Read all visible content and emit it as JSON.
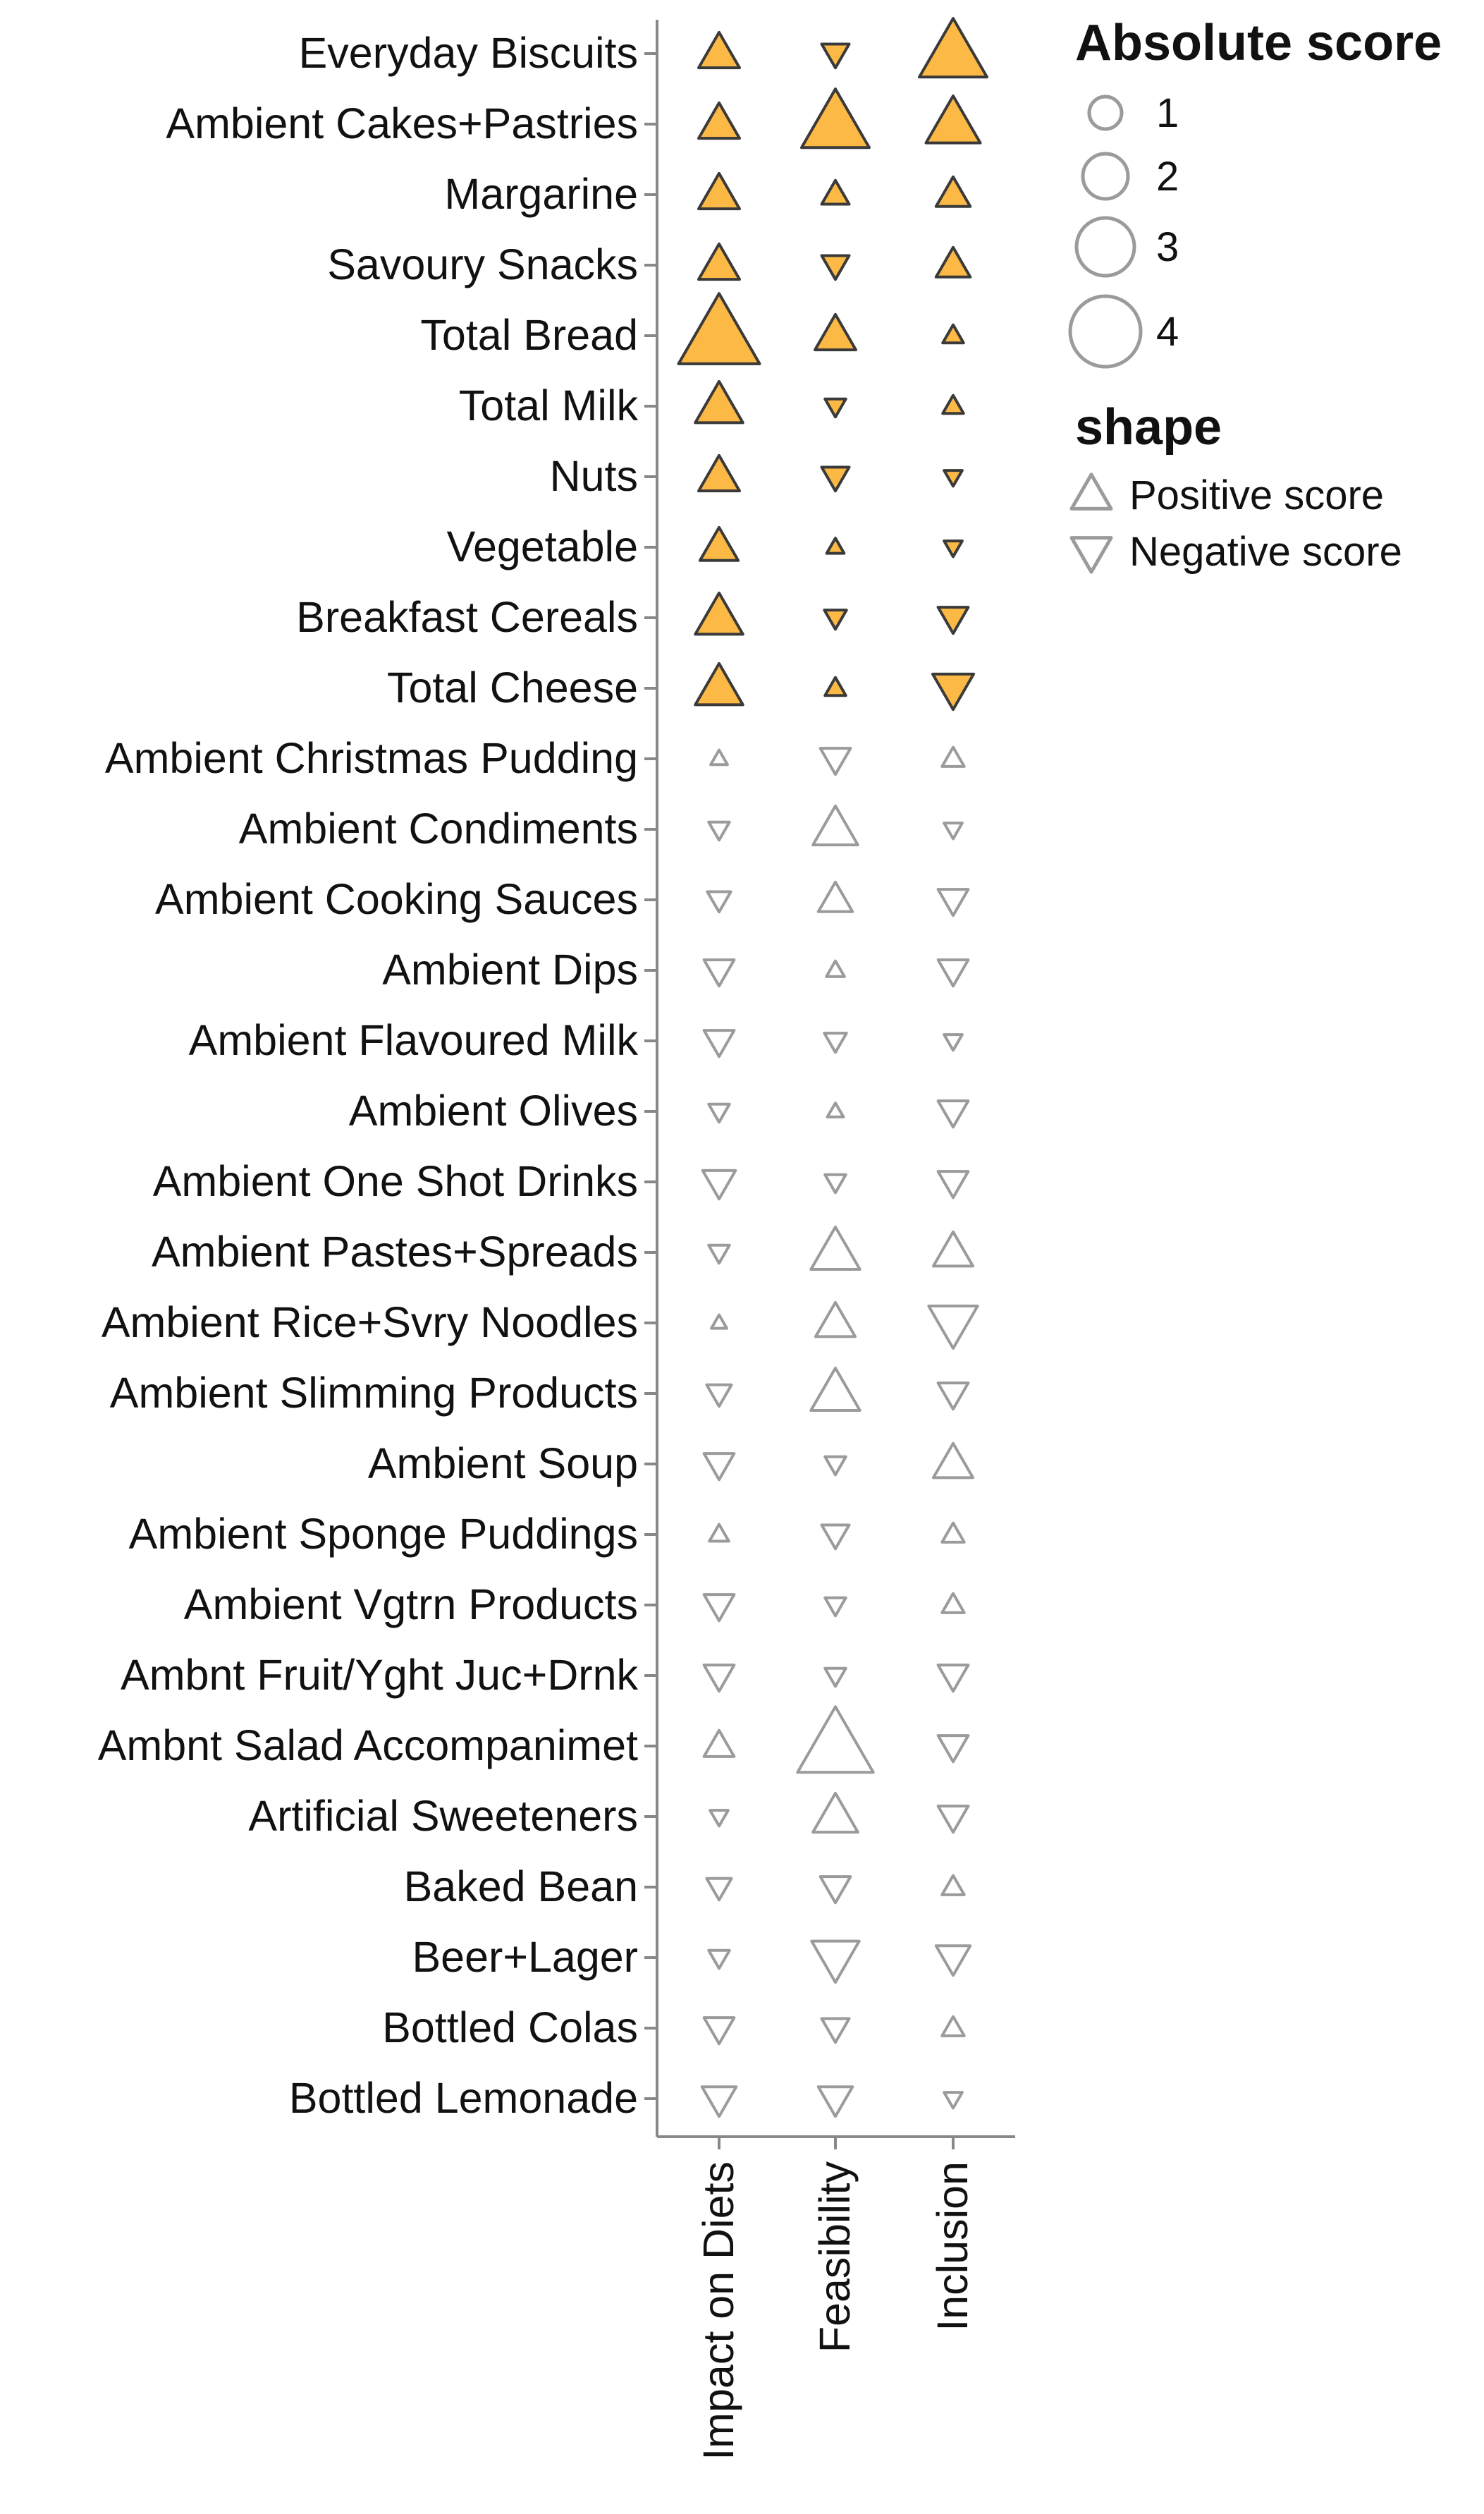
{
  "chart_data": {
    "type": "scatter",
    "columns": [
      "Impact on Diets",
      "Feasibility",
      "Inclusion"
    ],
    "highlight_color": "#FDB945",
    "highlight_stroke": "#3a3a3a",
    "muted_stroke": "#9b9b9b",
    "rows": [
      {
        "category": "Everyday Biscuits",
        "highlighted": true,
        "scores": [
          2,
          -1,
          4
        ]
      },
      {
        "category": "Ambient Cakes+Pastries",
        "highlighted": true,
        "scores": [
          2,
          4,
          3
        ]
      },
      {
        "category": "Margarine",
        "highlighted": true,
        "scores": [
          2,
          1,
          1.5
        ]
      },
      {
        "category": "Savoury Snacks",
        "highlighted": true,
        "scores": [
          2,
          -1,
          1.5
        ]
      },
      {
        "category": "Total Bread",
        "highlighted": true,
        "scores": [
          5,
          2,
          0.5
        ]
      },
      {
        "category": "Total Milk",
        "highlighted": true,
        "scores": [
          2.5,
          -0.5,
          0.5
        ]
      },
      {
        "category": "Nuts",
        "highlighted": true,
        "scores": [
          2,
          -1,
          -0.3
        ]
      },
      {
        "category": "Vegetable",
        "highlighted": true,
        "scores": [
          1.8,
          0.25,
          -0.3
        ]
      },
      {
        "category": "Breakfast Cereals",
        "highlighted": true,
        "scores": [
          2.5,
          -0.6,
          -1.2
        ]
      },
      {
        "category": "Total Cheese",
        "highlighted": true,
        "scores": [
          2.5,
          0.5,
          -2
        ]
      },
      {
        "category": "Ambient Christmas Pudding",
        "highlighted": false,
        "scores": [
          0.2,
          -1.2,
          0.6
        ]
      },
      {
        "category": "Ambient Condiments",
        "highlighted": false,
        "scores": [
          -0.5,
          2.3,
          -0.3
        ]
      },
      {
        "category": "Ambient Cooking Sauces",
        "highlighted": false,
        "scores": [
          -0.7,
          1.5,
          -1.2
        ]
      },
      {
        "category": "Ambient Dips",
        "highlighted": false,
        "scores": [
          -1.2,
          0.3,
          -1.2
        ]
      },
      {
        "category": "Ambient Flavoured Milk",
        "highlighted": false,
        "scores": [
          -1.2,
          -0.6,
          -0.3
        ]
      },
      {
        "category": "Ambient Olives",
        "highlighted": false,
        "scores": [
          -0.5,
          0.15,
          -1.2
        ]
      },
      {
        "category": "Ambient One Shot Drinks",
        "highlighted": false,
        "scores": [
          -1.4,
          -0.5,
          -1.2
        ]
      },
      {
        "category": "Ambient Pastes+Spreads",
        "highlighted": false,
        "scores": [
          -0.5,
          2.6,
          1.9
        ]
      },
      {
        "category": "Ambient Rice+Svry Noodles",
        "highlighted": false,
        "scores": [
          0.1,
          1.9,
          -2.6
        ]
      },
      {
        "category": "Ambient Slimming Products",
        "highlighted": false,
        "scores": [
          -0.8,
          2.6,
          -1.2
        ]
      },
      {
        "category": "Ambient Soup",
        "highlighted": false,
        "scores": [
          -1.2,
          -0.5,
          1.9
        ]
      },
      {
        "category": "Ambient Sponge Puddings",
        "highlighted": false,
        "scores": [
          0.4,
          -1,
          0.6
        ]
      },
      {
        "category": "Ambient Vgtrn Products",
        "highlighted": false,
        "scores": [
          -1.2,
          -0.5,
          0.6
        ]
      },
      {
        "category": "Ambnt Fruit/Yght Juc+Drnk",
        "highlighted": false,
        "scores": [
          -1.2,
          -0.5,
          -1.2
        ]
      },
      {
        "category": "Ambnt Salad Accompanimet",
        "highlighted": false,
        "scores": [
          1.2,
          4.6,
          -1.2
        ]
      },
      {
        "category": "Artificial Sweeteners",
        "highlighted": false,
        "scores": [
          -0.3,
          2.3,
          -1.2
        ]
      },
      {
        "category": "Baked Bean",
        "highlighted": false,
        "scores": [
          -0.8,
          -1.2,
          0.6
        ]
      },
      {
        "category": "Beer+Lager",
        "highlighted": false,
        "scores": [
          -0.5,
          -2.5,
          -1.5
        ]
      },
      {
        "category": "Bottled Colas",
        "highlighted": false,
        "scores": [
          -1.2,
          -1,
          0.6
        ]
      },
      {
        "category": "Bottled Lemonade",
        "highlighted": false,
        "scores": [
          -1.5,
          -1.5,
          -0.3
        ]
      }
    ],
    "legend": {
      "size_title": "Absolute score",
      "size_values": [
        1,
        2,
        3,
        4
      ],
      "size_labels": [
        "1",
        "2",
        "3",
        "4"
      ],
      "shape_title": "shape",
      "shape_labels": [
        "Positive score",
        "Negative score"
      ]
    }
  }
}
